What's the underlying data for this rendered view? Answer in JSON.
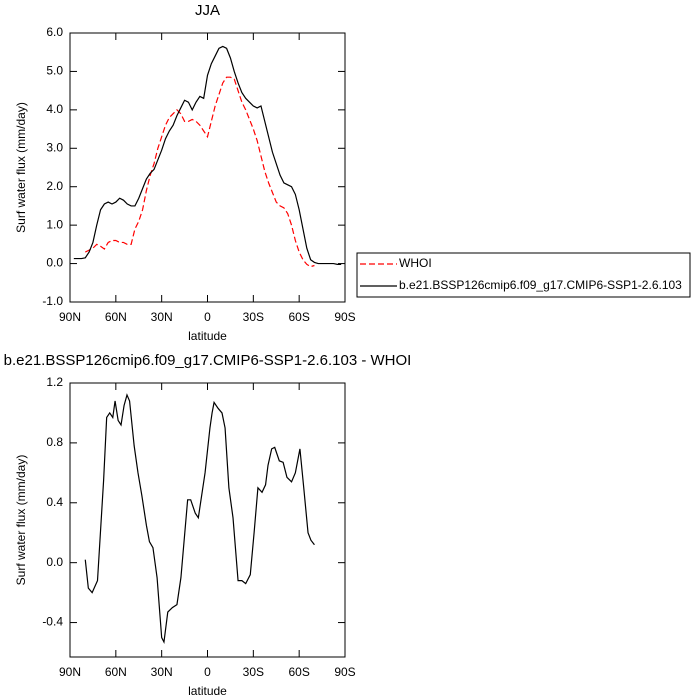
{
  "chart_data": [
    {
      "type": "line",
      "title": "JJA",
      "xlabel": "latitude",
      "ylabel": "Surf water flux (mm/day)",
      "xlim": [
        90,
        -90
      ],
      "xticks": [
        {
          "value": 90,
          "label": "90N"
        },
        {
          "value": 60,
          "label": "60N"
        },
        {
          "value": 30,
          "label": "30N"
        },
        0,
        {
          "value": -30,
          "label": "30S"
        },
        {
          "value": -60,
          "label": "60S"
        },
        {
          "value": -90,
          "label": "90S"
        }
      ],
      "ylim": [
        -1,
        6
      ],
      "yticks": [
        {
          "value": -1,
          "label": "-1.0"
        },
        {
          "value": 0,
          "label": "0.0"
        },
        {
          "value": 1,
          "label": "1.0"
        },
        {
          "value": 2,
          "label": "2.0"
        },
        {
          "value": 3,
          "label": "3.0"
        },
        {
          "value": 4,
          "label": "4.0"
        },
        {
          "value": 5,
          "label": "5.0"
        },
        {
          "value": 6,
          "label": "6.0"
        }
      ],
      "legend": "right",
      "x": [
        87.5,
        85,
        82.5,
        80,
        77.5,
        75,
        72.5,
        70,
        67.5,
        65,
        62.5,
        60,
        57.5,
        55,
        52.5,
        50,
        47.5,
        45,
        42.5,
        40,
        37.5,
        35,
        32.5,
        30,
        27.5,
        25,
        22.5,
        20,
        17.5,
        15,
        12.5,
        10,
        7.5,
        5,
        2.5,
        0,
        -2.5,
        -5,
        -7.5,
        -10,
        -12.5,
        -15,
        -17.5,
        -20,
        -22.5,
        -25,
        -27.5,
        -30,
        -32.5,
        -35,
        -37.5,
        -40,
        -42.5,
        -45,
        -47.5,
        -50,
        -52.5,
        -55,
        -57.5,
        -60,
        -62.5,
        -65,
        -67.5,
        -70,
        -72.5,
        -75,
        -77.5,
        -80,
        -82.5,
        -85,
        -87.5
      ],
      "series": [
        {
          "name": "WHOI",
          "color": "#ff0000",
          "line_style": "dashed",
          "values": [
            null,
            null,
            null,
            0.3,
            0.35,
            0.4,
            0.5,
            0.45,
            0.38,
            0.55,
            0.6,
            0.6,
            0.55,
            0.55,
            0.5,
            0.5,
            0.9,
            1.1,
            1.4,
            1.9,
            2.3,
            2.6,
            3.0,
            3.3,
            3.6,
            3.8,
            3.9,
            4.0,
            3.9,
            3.7,
            3.7,
            3.75,
            3.7,
            3.6,
            3.45,
            3.3,
            3.7,
            4.1,
            4.4,
            4.7,
            4.85,
            4.85,
            4.8,
            4.5,
            4.2,
            4.0,
            3.75,
            3.5,
            3.2,
            2.8,
            2.4,
            2.1,
            1.85,
            1.6,
            1.5,
            1.45,
            1.3,
            1.0,
            0.6,
            0.3,
            0.1,
            -0.02,
            -0.08,
            -0.05,
            null,
            null,
            null,
            null,
            null,
            null,
            null
          ]
        },
        {
          "name": "b.e21.BSSP126cmip6.f09_g17.CMIP6-SSP1-2.6.103",
          "color": "#000000",
          "line_style": "solid",
          "values": [
            0.13,
            0.13,
            0.13,
            0.15,
            0.3,
            0.55,
            1.0,
            1.4,
            1.55,
            1.6,
            1.55,
            1.6,
            1.7,
            1.65,
            1.55,
            1.5,
            1.5,
            1.7,
            1.95,
            2.2,
            2.35,
            2.45,
            2.7,
            2.95,
            3.25,
            3.45,
            3.6,
            3.85,
            4.05,
            4.25,
            4.2,
            4.0,
            4.2,
            4.35,
            4.3,
            4.9,
            5.2,
            5.4,
            5.6,
            5.65,
            5.6,
            5.35,
            5.0,
            4.7,
            4.45,
            4.3,
            4.2,
            4.1,
            4.05,
            4.1,
            3.7,
            3.3,
            2.9,
            2.6,
            2.3,
            2.1,
            2.05,
            2.0,
            1.8,
            1.4,
            0.9,
            0.4,
            0.1,
            0.03,
            0.0,
            0.0,
            0.0,
            0.0,
            0.0,
            -0.02,
            -0.02
          ]
        }
      ]
    },
    {
      "type": "line",
      "title": "b.e21.BSSP126cmip6.f09_g17.CMIP6-SSP1-2.6.103 - WHOI",
      "xlabel": "latitude",
      "ylabel": "Surf water flux (mm/day)",
      "xlim": [
        90,
        -90
      ],
      "xticks": [
        {
          "value": 90,
          "label": "90N"
        },
        {
          "value": 60,
          "label": "60N"
        },
        {
          "value": 30,
          "label": "30N"
        },
        0,
        {
          "value": -30,
          "label": "30S"
        },
        {
          "value": -60,
          "label": "60S"
        },
        {
          "value": -90,
          "label": "90S"
        }
      ],
      "ylim": [
        -0.63,
        1.2
      ],
      "yticks": [
        -0.4,
        {
          "value": 0,
          "label": "0.0"
        },
        0.4,
        0.8,
        1.2
      ],
      "x": [
        80,
        78,
        75.5,
        72,
        68,
        66,
        64,
        62,
        60.5,
        58.5,
        56.6,
        54.6,
        52.7,
        51,
        48,
        45.5,
        43,
        40,
        38,
        35.7,
        33,
        30,
        28.5,
        26,
        23,
        20,
        17.4,
        13,
        11,
        8,
        6,
        1.6,
        -1.6,
        -3,
        -4.3,
        -7,
        -9.5,
        -11.5,
        -14,
        -16.7,
        -20,
        -22.5,
        -25,
        -28,
        -30.5,
        -33,
        -35.7,
        -38,
        -39.6,
        -42,
        -44,
        -47,
        -49.5,
        -52,
        -55,
        -57.5,
        -59,
        -60.5,
        -63,
        -65.8,
        -67.7,
        -70
      ],
      "series": [
        {
          "color": "#000000",
          "line_style": "solid",
          "values": [
            0.02,
            -0.17,
            -0.2,
            -0.12,
            0.55,
            0.97,
            1.0,
            0.97,
            1.08,
            0.95,
            0.92,
            1.05,
            1.12,
            1.08,
            0.78,
            0.6,
            0.45,
            0.25,
            0.14,
            0.1,
            -0.1,
            -0.5,
            -0.53,
            -0.33,
            -0.3,
            -0.28,
            -0.1,
            0.42,
            0.42,
            0.33,
            0.3,
            0.6,
            0.9,
            1.0,
            1.07,
            1.03,
            1.0,
            0.9,
            0.5,
            0.3,
            -0.12,
            -0.12,
            -0.14,
            -0.08,
            0.2,
            0.5,
            0.47,
            0.52,
            0.65,
            0.76,
            0.77,
            0.68,
            0.67,
            0.57,
            0.54,
            0.6,
            0.68,
            0.76,
            0.5,
            0.2,
            0.15,
            0.12
          ]
        }
      ]
    }
  ]
}
